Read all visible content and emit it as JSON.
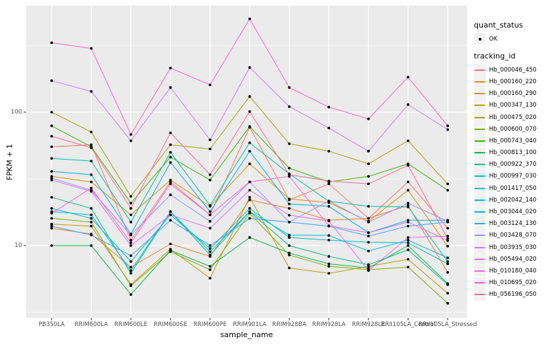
{
  "chart_data": {
    "type": "line",
    "title": "",
    "xlabel": "sample_name",
    "ylabel": "FPKM + 1",
    "y_scale": "log10",
    "y_ticks": [
      10,
      100
    ],
    "y_tick_labels": [
      "10",
      "100"
    ],
    "y_minor_ticks": [
      3.162,
      31.62,
      316.2
    ],
    "ylim": [
      2.9,
      630
    ],
    "grid": true,
    "panel_bg": "#EBEBEB",
    "grid_color": "#FFFFFF",
    "point_marker": {
      "shape": "dot",
      "color": "#000000"
    },
    "legend_position": "right",
    "categories": [
      "PB350LA",
      "RRIM600LA",
      "RRIM600LE",
      "RRIM600SE",
      "RRIM600PE",
      "RRIM901LA",
      "RRIM928BA",
      "RRIM928LA",
      "RRIM928LE",
      "RRII105LA_Control",
      "RRII105LA_Stressed"
    ],
    "legend": {
      "quant_title": "quant_status",
      "quant_items": [
        {
          "label": "OK",
          "glyph": "point",
          "color": "#000000"
        }
      ],
      "series_title": "tracking_id"
    },
    "series": [
      {
        "name": "Hb_000046_450",
        "color": "#F8766D",
        "values": [
          55,
          57,
          11,
          30,
          17,
          77,
          22,
          29,
          16,
          30,
          13.5
        ]
      },
      {
        "name": "Hb_000160_220",
        "color": "#EA8331",
        "values": [
          13.5,
          12.2,
          6.9,
          10.3,
          8.3,
          22,
          19,
          15.5,
          16,
          20,
          6.3
        ]
      },
      {
        "name": "Hb_000160_290",
        "color": "#D89000",
        "values": [
          33,
          30,
          17,
          31,
          19.7,
          41,
          22.4,
          21,
          15.2,
          26,
          9.9
        ]
      },
      {
        "name": "Hb_000347_130",
        "color": "#C09B00",
        "values": [
          14.5,
          14,
          5.1,
          9.4,
          5.7,
          23,
          6.8,
          6.2,
          7,
          7.9,
          4.4
        ]
      },
      {
        "name": "Hb_000475_020",
        "color": "#A3A500",
        "values": [
          100,
          71,
          23.4,
          57,
          53,
          131,
          58,
          51,
          41,
          61,
          29
        ]
      },
      {
        "name": "Hb_000600_070",
        "color": "#7CAE00",
        "values": [
          16,
          15,
          5,
          9,
          6.6,
          17.5,
          8.5,
          7,
          6.6,
          6.9,
          3.7
        ]
      },
      {
        "name": "Hb_000743_040",
        "color": "#39B600",
        "values": [
          79,
          55,
          20.8,
          46,
          31,
          78,
          38,
          30,
          33,
          41,
          26
        ]
      },
      {
        "name": "Hb_000813_100",
        "color": "#00BB4E",
        "values": [
          10,
          10,
          4.3,
          9.2,
          7,
          11.5,
          8.8,
          7.3,
          6.8,
          10,
          5.2
        ]
      },
      {
        "name": "Hb_000922_370",
        "color": "#00BF7D",
        "values": [
          23,
          19,
          6.2,
          18,
          8.5,
          18,
          10,
          8.3,
          7.2,
          9.3,
          5.1
        ]
      },
      {
        "name": "Hb_000997_030",
        "color": "#00C1A3",
        "values": [
          45,
          43,
          15,
          50,
          20,
          59,
          34.5,
          21.5,
          19.7,
          19.5,
          7.6
        ]
      },
      {
        "name": "Hb_001417_050",
        "color": "#00BFC4",
        "values": [
          19,
          16,
          7.6,
          17,
          9.5,
          19,
          11.5,
          11,
          10.6,
          10.5,
          7.3
        ]
      },
      {
        "name": "Hb_002042_140",
        "color": "#00BAE0",
        "values": [
          18,
          17,
          6.5,
          18,
          9,
          18,
          12,
          11.9,
          9.1,
          11,
          8.1
        ]
      },
      {
        "name": "Hb_003044_020",
        "color": "#00B0F6",
        "values": [
          36,
          34,
          12.2,
          42,
          18,
          51,
          20.5,
          19.7,
          12.5,
          15.5,
          15.5
        ]
      },
      {
        "name": "Hb_003124_130",
        "color": "#35A2FF",
        "values": [
          14,
          12,
          8.4,
          15.5,
          10,
          16,
          15,
          14,
          11.8,
          14,
          15
        ]
      },
      {
        "name": "Hb_003428_070",
        "color": "#9590FF",
        "values": [
          32,
          26,
          12,
          24,
          15.2,
          30,
          15,
          21.6,
          15,
          20.8,
          15.2
        ]
      },
      {
        "name": "Hb_003935_030",
        "color": "#C77CFF",
        "values": [
          172,
          143,
          61,
          153,
          62,
          216,
          110,
          76,
          51,
          114,
          74
        ]
      },
      {
        "name": "Hb_005494_020",
        "color": "#E76BF3",
        "values": [
          31,
          25.5,
          10,
          17,
          13.5,
          26,
          16.9,
          15.3,
          6.5,
          11.5,
          11.8
        ]
      },
      {
        "name": "Hb_010180_040",
        "color": "#FA62DB",
        "values": [
          17.5,
          27,
          10.5,
          29,
          17,
          30,
          33,
          14.1,
          12.5,
          15,
          10.9
        ]
      },
      {
        "name": "Hb_010695_020",
        "color": "#FF62BC",
        "values": [
          331,
          300,
          68,
          214,
          160,
          500,
          153,
          109,
          89,
          183,
          79
        ]
      },
      {
        "name": "Hb_056196_050",
        "color": "#FF6A98",
        "values": [
          66,
          54,
          19,
          70,
          34,
          101,
          34,
          30.5,
          29,
          40,
          11.3
        ]
      }
    ]
  }
}
